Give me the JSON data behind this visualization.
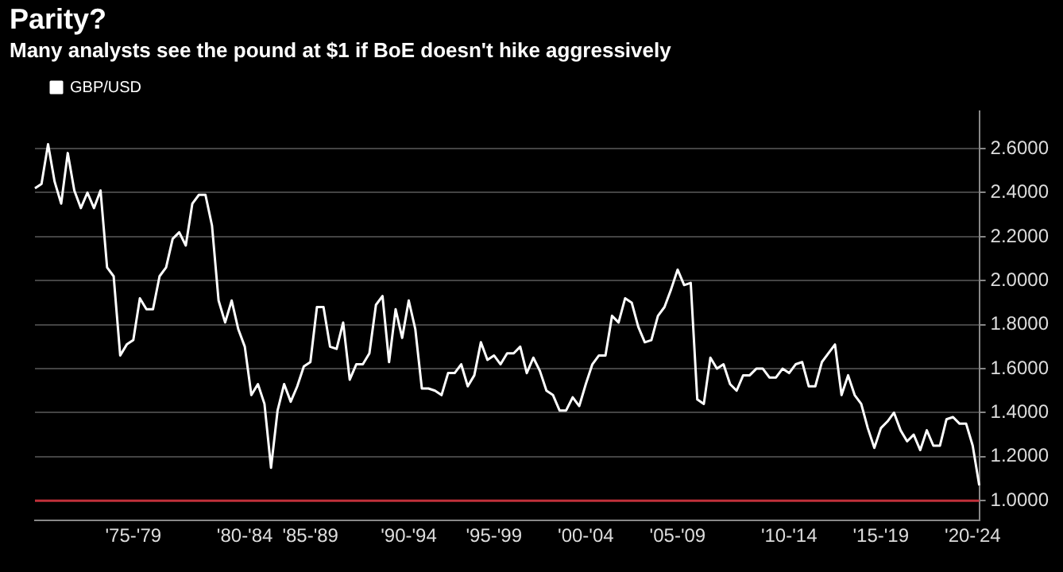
{
  "chart_data": {
    "type": "line",
    "title": "Parity?",
    "subtitle": "Many analysts see the pound at $1 if BoE doesn't hike aggressively",
    "categories": [
      null,
      null,
      null,
      null,
      null,
      null,
      null,
      null,
      null,
      null,
      null,
      null,
      null,
      null,
      null,
      "'75-'79",
      null,
      null,
      null,
      null,
      null,
      null,
      null,
      null,
      null,
      null,
      null,
      null,
      null,
      null,
      null,
      null,
      "'80-'84",
      null,
      null,
      null,
      null,
      null,
      null,
      null,
      null,
      null,
      "'85-'89",
      null,
      null,
      null,
      null,
      null,
      null,
      null,
      null,
      null,
      null,
      null,
      null,
      null,
      null,
      "'90-'94",
      null,
      null,
      null,
      null,
      null,
      null,
      null,
      null,
      null,
      null,
      null,
      null,
      "'95-'99",
      null,
      null,
      null,
      null,
      null,
      null,
      null,
      null,
      null,
      null,
      null,
      null,
      null,
      "'00-'04",
      null,
      null,
      null,
      null,
      null,
      null,
      null,
      null,
      null,
      null,
      null,
      null,
      null,
      "'05-'09",
      null,
      null,
      null,
      null,
      null,
      null,
      null,
      null,
      null,
      null,
      null,
      null,
      null,
      null,
      null,
      null,
      "'10-'14",
      null,
      null,
      null,
      null,
      null,
      null,
      null,
      null,
      null,
      null,
      null,
      null,
      null,
      "'15-'19",
      null,
      null,
      null,
      null,
      null,
      null,
      null,
      null,
      null,
      null,
      null,
      null,
      null,
      "'20-'24",
      null
    ],
    "ylim": [
      0.91,
      2.77
    ],
    "yticks": [
      {
        "value": 1,
        "label": "1.0000"
      },
      {
        "value": 1.2,
        "label": "1.2000"
      },
      {
        "value": 1.4,
        "label": "1.4000"
      },
      {
        "value": 1.6,
        "label": "1.6000"
      },
      {
        "value": 1.8,
        "label": "1.8000"
      },
      {
        "value": 2,
        "label": "2.0000"
      },
      {
        "value": 2.2,
        "label": "2.2000"
      },
      {
        "value": 2.4,
        "label": "2.4000"
      },
      {
        "value": 2.6,
        "label": "2.6000"
      }
    ],
    "grid": "y",
    "legend": "top left",
    "marker": "none",
    "line_style": "solid",
    "ref_lines": [
      {
        "axis": "y",
        "value": 1,
        "color": "#c0303a"
      }
    ],
    "series": [
      {
        "name": "GBP/USD",
        "color": "#ffffff",
        "values": [
          2.42,
          2.44,
          2.62,
          2.45,
          2.35,
          2.58,
          2.41,
          2.33,
          2.4,
          2.33,
          2.41,
          2.06,
          2.02,
          1.66,
          1.71,
          1.73,
          1.92,
          1.87,
          1.87,
          2.02,
          2.06,
          2.19,
          2.22,
          2.16,
          2.35,
          2.39,
          2.39,
          2.25,
          1.91,
          1.81,
          1.91,
          1.78,
          1.7,
          1.48,
          1.53,
          1.44,
          1.15,
          1.41,
          1.53,
          1.45,
          1.52,
          1.61,
          1.63,
          1.88,
          1.88,
          1.7,
          1.69,
          1.81,
          1.55,
          1.62,
          1.62,
          1.67,
          1.89,
          1.93,
          1.63,
          1.87,
          1.74,
          1.91,
          1.78,
          1.51,
          1.51,
          1.5,
          1.48,
          1.58,
          1.58,
          1.62,
          1.52,
          1.57,
          1.72,
          1.64,
          1.66,
          1.62,
          1.67,
          1.67,
          1.7,
          1.58,
          1.65,
          1.59,
          1.5,
          1.48,
          1.41,
          1.41,
          1.47,
          1.43,
          1.53,
          1.62,
          1.66,
          1.66,
          1.84,
          1.81,
          1.92,
          1.9,
          1.79,
          1.72,
          1.73,
          1.84,
          1.88,
          1.96,
          2.05,
          1.98,
          1.99,
          1.46,
          1.44,
          1.65,
          1.6,
          1.62,
          1.53,
          1.5,
          1.57,
          1.57,
          1.6,
          1.6,
          1.56,
          1.56,
          1.6,
          1.58,
          1.62,
          1.63,
          1.52,
          1.52,
          1.63,
          1.67,
          1.71,
          1.48,
          1.57,
          1.48,
          1.44,
          1.33,
          1.24,
          1.33,
          1.36,
          1.4,
          1.32,
          1.27,
          1.3,
          1.23,
          1.32,
          1.25,
          1.25,
          1.37,
          1.38,
          1.35,
          1.35,
          1.25,
          1.07
        ]
      }
    ]
  }
}
